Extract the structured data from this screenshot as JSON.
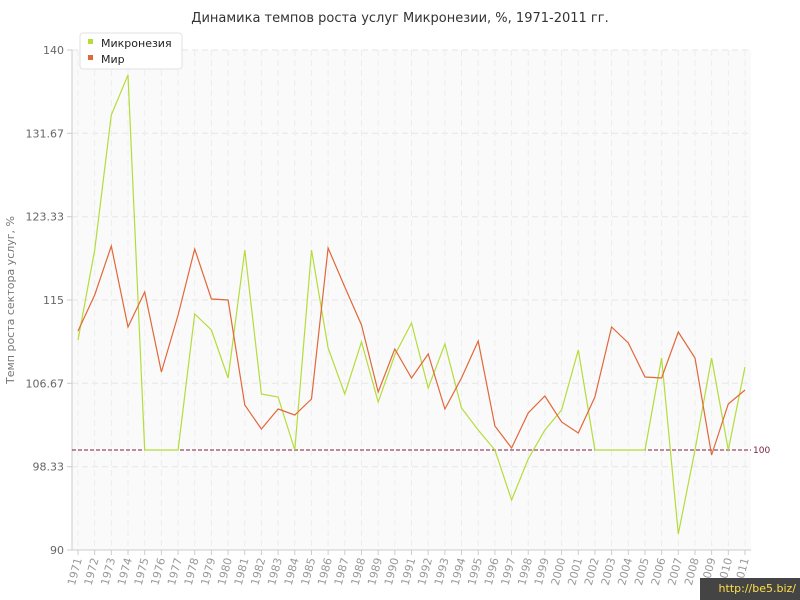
{
  "chart_data": {
    "type": "line",
    "title": "Динамика темпов роста услуг Микронезии, %, 1971-2011 гг.",
    "xlabel": "",
    "ylabel": "Темп роста сектора услуг, %",
    "ylim": [
      90,
      140
    ],
    "yticks": [
      "90",
      "98.33",
      "106.67",
      "115",
      "123.33",
      "131.67",
      "140"
    ],
    "grid": true,
    "legend_position": "top-left",
    "x": [
      "1971",
      "1972",
      "1973",
      "1974",
      "1975",
      "1976",
      "1977",
      "1978",
      "1979",
      "1980",
      "1981",
      "1982",
      "1983",
      "1984",
      "1985",
      "1986",
      "1987",
      "1988",
      "1989",
      "1990",
      "1991",
      "1992",
      "1993",
      "1994",
      "1995",
      "1996",
      "1997",
      "1998",
      "1999",
      "2000",
      "2001",
      "2002",
      "2003",
      "2004",
      "2005",
      "2006",
      "2007",
      "2008",
      "2009",
      "2010",
      "2011"
    ],
    "reference_line": {
      "value": 100,
      "label": "100",
      "color": "#7a1f3d"
    },
    "series": [
      {
        "name": "Микронезия",
        "color": "#b5dc3a",
        "values": [
          111,
          120,
          133.5,
          137.5,
          100,
          100,
          100,
          113.6,
          112,
          107.2,
          120,
          105.6,
          105.3,
          100,
          120,
          110.2,
          105.6,
          110.8,
          104.8,
          109.5,
          112.7,
          106.2,
          110.6,
          104.2,
          102,
          100,
          95,
          99.1,
          102,
          104,
          110,
          100,
          100,
          100,
          100,
          109.2,
          91.6,
          100,
          109.2,
          100,
          108.3
        ]
      },
      {
        "name": "Мир",
        "color": "#e0683a",
        "values": [
          111.9,
          115.5,
          120.4,
          112.3,
          115.8,
          107.8,
          113.5,
          120.1,
          115.1,
          115,
          104.5,
          102.1,
          104.1,
          103.5,
          105.1,
          120.2,
          116.3,
          112.5,
          105.8,
          110.1,
          107.2,
          109.6,
          104.1,
          107.2,
          110.9,
          102.4,
          100.2,
          103.7,
          105.4,
          102.8,
          101.7,
          105.3,
          112.3,
          110.7,
          107.3,
          107.2,
          111.8,
          109.2,
          99.5,
          104.6,
          106
        ]
      }
    ]
  },
  "watermark": "http://be5.biz/"
}
